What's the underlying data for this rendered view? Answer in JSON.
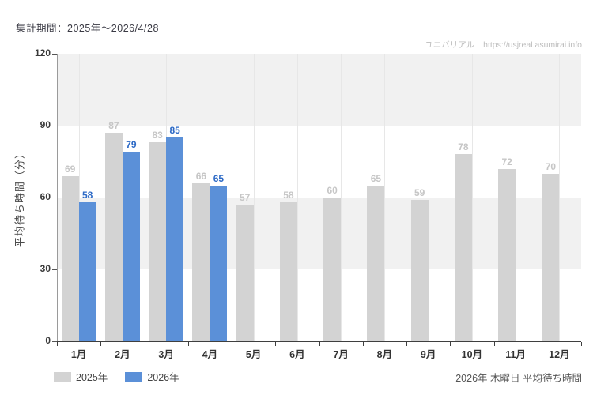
{
  "header": {
    "title": "集計期間：2025年～2026/4/28",
    "watermark_site": "ユニバリアル",
    "watermark_url": "https://usjreal.asumirai.info"
  },
  "chart_data": {
    "type": "bar",
    "title": "",
    "categories": [
      "1月",
      "2月",
      "3月",
      "4月",
      "5月",
      "6月",
      "7月",
      "8月",
      "9月",
      "10月",
      "11月",
      "12月"
    ],
    "series": [
      {
        "name": "2025年",
        "color": "#d3d3d3",
        "label_color": "#c6c6c6",
        "values": [
          69,
          87,
          83,
          66,
          57,
          58,
          60,
          65,
          59,
          78,
          72,
          70
        ]
      },
      {
        "name": "2026年",
        "color": "#5b90d8",
        "label_color": "#2d6ac6",
        "values": [
          58,
          79,
          85,
          65,
          null,
          null,
          null,
          null,
          null,
          null,
          null,
          null
        ]
      }
    ],
    "xlabel": "",
    "ylabel": "平均待ち時間（分）",
    "ylim": [
      0,
      120
    ],
    "yticks": [
      0,
      30,
      60,
      90,
      120
    ],
    "shaded_bands": [
      [
        30,
        60
      ],
      [
        90,
        120
      ]
    ],
    "band_color": "#f1f1f1",
    "vgrid_color": "#e7e7e7",
    "legend_position": "bottom-left",
    "grid": "horizontal shaded bands + vertical lines at category centers"
  },
  "footer": {
    "caption": "2026年 木曜日 平均待ち時間"
  }
}
